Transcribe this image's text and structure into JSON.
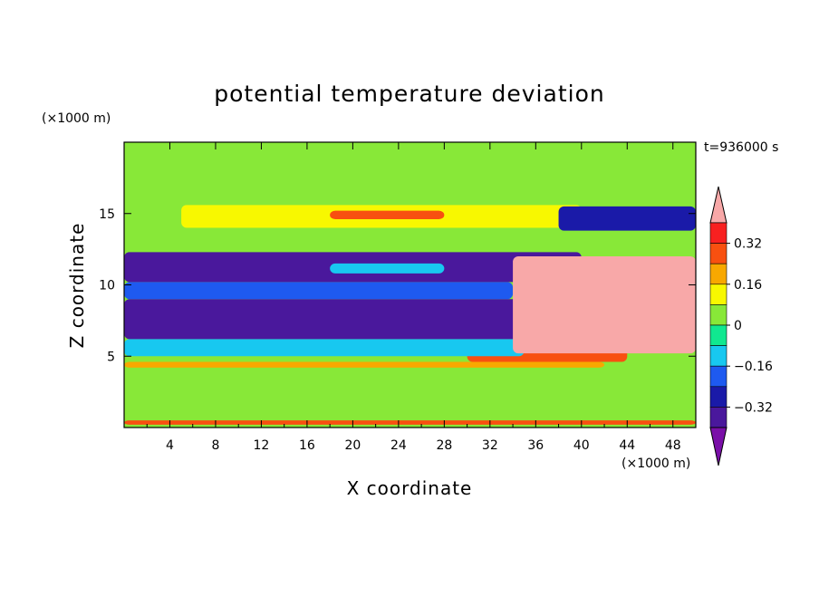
{
  "chart_data": {
    "type": "heatmap",
    "title": "potential temperature deviation",
    "time_label": "t=936000 s",
    "xlabel": "X coordinate",
    "ylabel": "Z coordinate",
    "x_unit": "(×1000 m)",
    "y_unit": "(×1000 m)",
    "xlim": [
      0,
      50
    ],
    "ylim": [
      0,
      20
    ],
    "x_ticks": [
      "4",
      "8",
      "12",
      "16",
      "20",
      "24",
      "28",
      "32",
      "36",
      "40",
      "44",
      "48"
    ],
    "y_ticks": [
      "5",
      "10",
      "15"
    ],
    "colorbar": {
      "labels": [
        "0.32",
        "0.16",
        "0",
        "-0.16",
        "-0.32"
      ],
      "levels": [
        -0.4,
        -0.32,
        -0.24,
        -0.16,
        -0.08,
        0,
        0.08,
        0.16,
        0.24,
        0.32,
        0.4
      ],
      "colors": [
        "#7a0fa8",
        "#4a189c",
        "#1a1aa8",
        "#1e5af0",
        "#18c8f0",
        "#10e890",
        "#88e838",
        "#f8f800",
        "#f8a800",
        "#f85010",
        "#f82020",
        "#f8a8a8"
      ]
    },
    "regions": [
      {
        "x": [
          0,
          50
        ],
        "z": [
          0.2,
          4.2
        ],
        "value": 0.05
      },
      {
        "x": [
          0,
          50
        ],
        "z": [
          0.2,
          0.5
        ],
        "value": 0.3
      },
      {
        "x": [
          0,
          42
        ],
        "z": [
          4.2,
          4.6
        ],
        "value": 0.22
      },
      {
        "x": [
          30,
          44
        ],
        "z": [
          4.6,
          5.6
        ],
        "value": 0.3
      },
      {
        "x": [
          0,
          35
        ],
        "z": [
          5.0,
          6.2
        ],
        "value": -0.1
      },
      {
        "x": [
          0,
          38
        ],
        "z": [
          6.2,
          9.0
        ],
        "value": -0.36
      },
      {
        "x": [
          0,
          34
        ],
        "z": [
          9.0,
          10.2
        ],
        "value": -0.2
      },
      {
        "x": [
          0,
          40
        ],
        "z": [
          10.2,
          12.3
        ],
        "value": -0.34
      },
      {
        "x": [
          18,
          28
        ],
        "z": [
          10.8,
          11.5
        ],
        "value": -0.1
      },
      {
        "x": [
          0,
          42
        ],
        "z": [
          12.3,
          14.0
        ],
        "value": 0.05
      },
      {
        "x": [
          5,
          40
        ],
        "z": [
          14.0,
          15.6
        ],
        "value": 0.15
      },
      {
        "x": [
          18,
          28
        ],
        "z": [
          14.6,
          15.2
        ],
        "value": 0.24
      },
      {
        "x": [
          38,
          50
        ],
        "z": [
          13.8,
          15.5
        ],
        "value": -0.3
      },
      {
        "x": [
          0,
          50
        ],
        "z": [
          15.6,
          20
        ],
        "value": 0.03
      },
      {
        "x": [
          34,
          50
        ],
        "z": [
          5.2,
          12.0
        ],
        "value": 0.45
      }
    ]
  }
}
